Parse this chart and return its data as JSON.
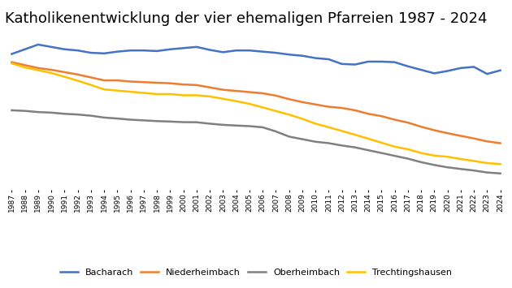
{
  "title": "Katholikenentwicklung der vier ehemaligen Pfarreien 1987 - 2024",
  "years": [
    1987,
    1988,
    1989,
    1990,
    1991,
    1992,
    1993,
    1994,
    1995,
    1996,
    1997,
    1998,
    1999,
    2000,
    2001,
    2002,
    2003,
    2004,
    2005,
    2006,
    2007,
    2008,
    2009,
    2010,
    2011,
    2012,
    2013,
    2014,
    2015,
    2016,
    2017,
    2018,
    2019,
    2020,
    2021,
    2022,
    2023,
    2024
  ],
  "series": {
    "Bacharach": [
      1560,
      1600,
      1640,
      1620,
      1600,
      1590,
      1570,
      1565,
      1580,
      1590,
      1590,
      1585,
      1600,
      1610,
      1620,
      1595,
      1575,
      1590,
      1590,
      1580,
      1570,
      1555,
      1545,
      1525,
      1515,
      1475,
      1470,
      1495,
      1495,
      1490,
      1455,
      1425,
      1395,
      1415,
      1440,
      1450,
      1390,
      1420
    ],
    "Niederheimbach": [
      1490,
      1465,
      1440,
      1425,
      1405,
      1385,
      1360,
      1335,
      1335,
      1325,
      1320,
      1315,
      1310,
      1300,
      1295,
      1275,
      1255,
      1245,
      1235,
      1225,
      1205,
      1175,
      1150,
      1130,
      1110,
      1100,
      1080,
      1050,
      1030,
      1000,
      975,
      940,
      910,
      885,
      862,
      840,
      815,
      800
    ],
    "Oberheimbach": [
      1080,
      1075,
      1065,
      1060,
      1050,
      1044,
      1034,
      1018,
      1010,
      1000,
      994,
      988,
      984,
      979,
      978,
      966,
      956,
      950,
      945,
      935,
      900,
      856,
      834,
      812,
      800,
      780,
      764,
      740,
      716,
      692,
      668,
      638,
      614,
      594,
      580,
      567,
      550,
      542
    ],
    "Trechtingshausen": [
      1480,
      1445,
      1422,
      1398,
      1366,
      1332,
      1296,
      1258,
      1248,
      1238,
      1228,
      1218,
      1218,
      1208,
      1208,
      1198,
      1178,
      1158,
      1135,
      1105,
      1074,
      1043,
      1008,
      966,
      936,
      904,
      872,
      838,
      804,
      770,
      748,
      716,
      694,
      684,
      665,
      648,
      630,
      622
    ]
  },
  "colors": {
    "Bacharach": "#4472C4",
    "Niederheimbach": "#ED7D31",
    "Oberheimbach": "#808080",
    "Trechtingshausen": "#FFC000"
  },
  "ylim": [
    400,
    1750
  ],
  "title_fontsize": 13,
  "tick_fontsize": 6.5,
  "legend_fontsize": 8,
  "linewidth": 1.8,
  "background_color": "#ffffff"
}
